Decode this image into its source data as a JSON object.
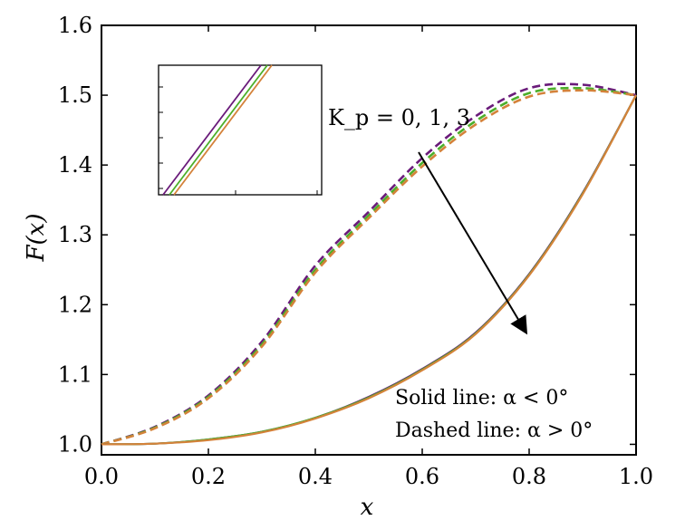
{
  "chart_data": {
    "type": "line",
    "xlabel": "x",
    "ylabel": "F(x)",
    "xlim": [
      0.0,
      1.0
    ],
    "ylim": [
      0.985,
      1.6
    ],
    "x_ticks": [
      "0.0",
      "0.2",
      "0.4",
      "0.6",
      "0.8",
      "1.0"
    ],
    "y_ticks": [
      "1.0",
      "1.1",
      "1.2",
      "1.3",
      "1.4",
      "1.5",
      "1.6"
    ],
    "annotations": {
      "kp_label": "K_p = 0, 1, 3",
      "solid_note": "Solid line: α < 0°",
      "dashed_note": "Dashed line: α > 0°"
    },
    "colors": {
      "kp0": "#6a1b7a",
      "kp1": "#4caf2a",
      "kp3": "#d4823a",
      "arrow": "#000000"
    },
    "x": [
      0.0,
      0.1,
      0.2,
      0.3,
      0.4,
      0.5,
      0.6,
      0.7,
      0.8,
      0.9,
      1.0
    ],
    "series": [
      {
        "name": "K_p = 0, α > 0°",
        "style": "dashed",
        "color": "#6a1b7a",
        "values": [
          1.0,
          1.025,
          1.07,
          1.147,
          1.256,
          1.333,
          1.41,
          1.47,
          1.51,
          1.515,
          1.5
        ]
      },
      {
        "name": "K_p = 1, α > 0°",
        "style": "dashed",
        "color": "#4caf2a",
        "values": [
          1.0,
          1.024,
          1.068,
          1.143,
          1.25,
          1.328,
          1.403,
          1.463,
          1.503,
          1.51,
          1.5
        ]
      },
      {
        "name": "K_p = 3, α > 0°",
        "style": "dashed",
        "color": "#d4823a",
        "values": [
          1.0,
          1.023,
          1.066,
          1.14,
          1.246,
          1.324,
          1.398,
          1.458,
          1.498,
          1.507,
          1.5
        ]
      },
      {
        "name": "K_p = 0, α < 0°",
        "style": "solid",
        "color": "#6a1b7a",
        "values": [
          1.0,
          1.001,
          1.007,
          1.018,
          1.038,
          1.068,
          1.108,
          1.16,
          1.244,
          1.36,
          1.5
        ]
      },
      {
        "name": "K_p = 1, α < 0°",
        "style": "solid",
        "color": "#4caf2a",
        "values": [
          1.0,
          1.001,
          1.007,
          1.018,
          1.038,
          1.067,
          1.107,
          1.159,
          1.243,
          1.359,
          1.5
        ]
      },
      {
        "name": "K_p = 3, α < 0°",
        "style": "solid",
        "color": "#d4823a",
        "values": [
          1.0,
          1.001,
          1.006,
          1.017,
          1.037,
          1.066,
          1.106,
          1.158,
          1.242,
          1.358,
          1.5
        ]
      }
    ],
    "inset": {
      "description_visible": "zoomed view of three parallel solid lines",
      "series": [
        {
          "color": "#6a1b7a",
          "values": [
            0.0,
            1.0
          ]
        },
        {
          "color": "#4caf2a",
          "values": [
            0.0,
            1.0
          ]
        },
        {
          "color": "#d4823a",
          "values": [
            0.0,
            1.0
          ]
        }
      ]
    }
  }
}
